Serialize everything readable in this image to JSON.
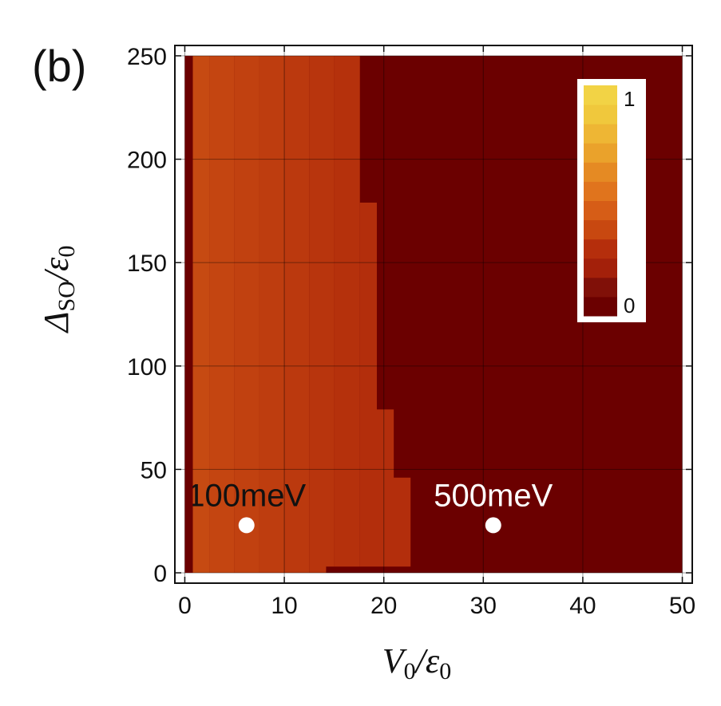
{
  "panel_label": "(b)",
  "chart_data": {
    "type": "heatmap",
    "xlabel": {
      "main": "V",
      "sub": "0",
      "rest": "/ε",
      "sub2": "0"
    },
    "ylabel": {
      "main": "Δ",
      "sub": "SO",
      "rest": "/ε",
      "sub2": "0"
    },
    "xlim": [
      -1,
      51
    ],
    "ylim": [
      -5,
      255
    ],
    "x_ticks": [
      0,
      10,
      20,
      30,
      40,
      50
    ],
    "y_ticks": [
      0,
      50,
      100,
      150,
      200,
      250
    ],
    "grid": true,
    "background_value": 0,
    "data_extent": {
      "x": [
        0,
        50
      ],
      "y": [
        0,
        250
      ]
    },
    "regions": [
      {
        "value": 0.0,
        "points": [
          [
            0,
            0
          ],
          [
            0,
            250
          ],
          [
            0.8,
            250
          ],
          [
            0.8,
            0
          ]
        ]
      },
      {
        "value": 0.45,
        "points": [
          [
            0.8,
            0
          ],
          [
            0.8,
            250
          ],
          [
            17.6,
            250
          ],
          [
            17.6,
            179
          ],
          [
            19.3,
            179
          ],
          [
            19.3,
            79
          ],
          [
            21.0,
            79
          ],
          [
            21.0,
            46
          ],
          [
            22.7,
            46
          ],
          [
            22.7,
            3
          ],
          [
            14.2,
            3
          ],
          [
            14.2,
            0
          ]
        ]
      }
    ],
    "gradient_columns": [
      {
        "x": [
          0.8,
          2.5
        ],
        "value": 0.53
      },
      {
        "x": [
          2.5,
          5.0
        ],
        "value": 0.51
      },
      {
        "x": [
          5.0,
          7.5
        ],
        "value": 0.49
      },
      {
        "x": [
          7.5,
          10.0
        ],
        "value": 0.47
      },
      {
        "x": [
          10.0,
          12.5
        ],
        "value": 0.45
      },
      {
        "x": [
          12.5,
          15.0
        ],
        "value": 0.43
      },
      {
        "x": [
          15.0,
          17.6
        ],
        "value": 0.41
      },
      {
        "x": [
          17.6,
          22.7
        ],
        "value": 0.39
      }
    ],
    "points": [
      {
        "x": 6.2,
        "y": 23,
        "label": "100meV",
        "label_color": "#111111"
      },
      {
        "x": 31.0,
        "y": 23,
        "label": "500meV",
        "label_color": "#ffffff"
      }
    ],
    "colorbar": {
      "min_label": "0",
      "max_label": "1",
      "steps": [
        "#6b0000",
        "#801008",
        "#a3200a",
        "#b52e0c",
        "#c84810",
        "#d65d17",
        "#e0741d",
        "#e58a23",
        "#eaa22b",
        "#eeb634",
        "#f0c83c",
        "#f2d345"
      ]
    }
  }
}
